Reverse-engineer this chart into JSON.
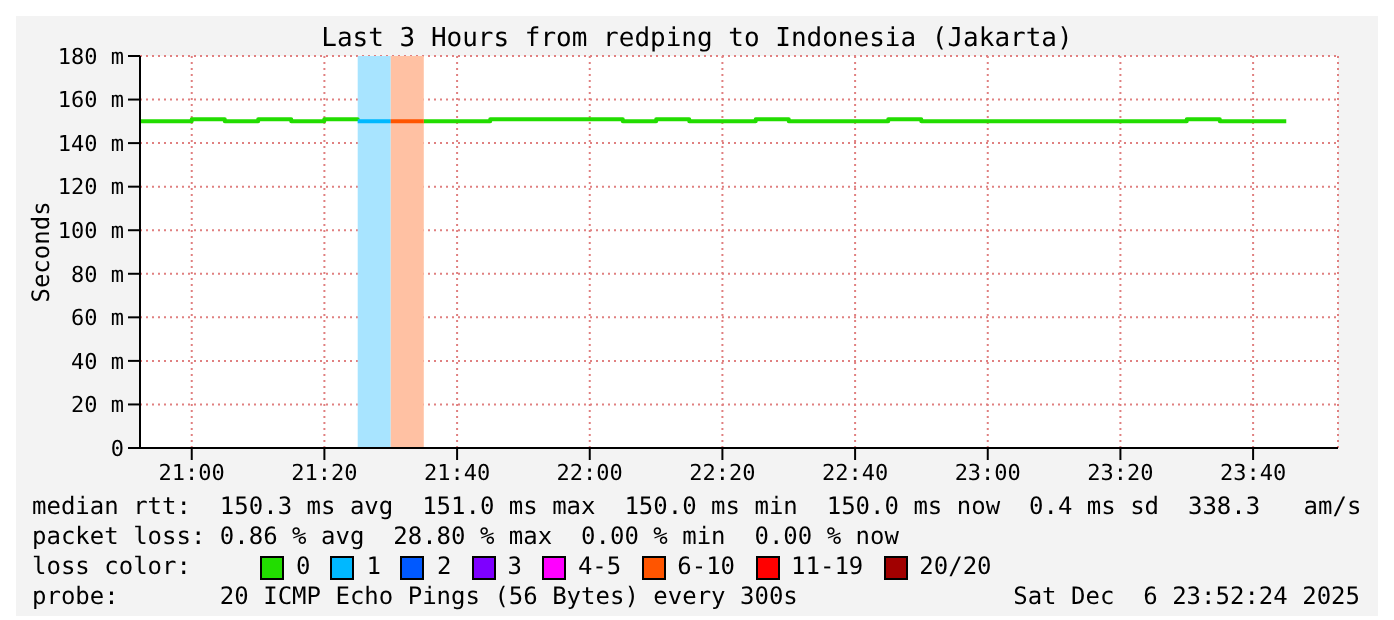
{
  "chart_data": {
    "type": "step",
    "title": "Last 3 Hours from redping to Indonesia (Jakarta)",
    "ylabel": "Seconds",
    "xlim": [
      20.87,
      23.88
    ],
    "xticks": [
      {
        "value": 21,
        "label": "21:00"
      },
      {
        "value": 21.3333,
        "label": "21:20"
      },
      {
        "value": 21.6667,
        "label": "21:40"
      },
      {
        "value": 22,
        "label": "22:00"
      },
      {
        "value": 22.3333,
        "label": "22:20"
      },
      {
        "value": 22.6667,
        "label": "22:40"
      },
      {
        "value": 23,
        "label": "23:00"
      },
      {
        "value": 23.3333,
        "label": "23:20"
      },
      {
        "value": 23.6667,
        "label": "23:40"
      }
    ],
    "ylim": [
      0,
      180
    ],
    "yticks": [
      {
        "value": 0,
        "label": "0"
      },
      {
        "value": 20,
        "label": "20 m"
      },
      {
        "value": 40,
        "label": "40 m"
      },
      {
        "value": 60,
        "label": "60 m"
      },
      {
        "value": 80,
        "label": "80 m"
      },
      {
        "value": 100,
        "label": "100 m"
      },
      {
        "value": 120,
        "label": "120 m"
      },
      {
        "value": 140,
        "label": "140 m"
      },
      {
        "value": 160,
        "label": "160 m"
      },
      {
        "value": 180,
        "label": "180 m"
      }
    ],
    "grid": true,
    "legend": "bottom",
    "legend_title": "loss color:",
    "marker": "none",
    "series": [
      {
        "name": "0",
        "color": "#22dd00",
        "x": [
          20.87,
          21.0,
          21.083,
          21.167,
          21.25,
          21.333,
          21.417,
          21.5,
          21.583,
          21.75,
          22.083,
          22.167,
          22.25,
          22.417,
          22.5,
          22.75,
          22.833,
          23.5,
          23.583,
          23.75
        ],
        "values": [
          150,
          151,
          150,
          151,
          150,
          151,
          150,
          null,
          150,
          151,
          150,
          151,
          150,
          151,
          150,
          151,
          150,
          151,
          150,
          150
        ]
      },
      {
        "name": "1",
        "color": "#00b8ff",
        "x": [
          21.417,
          21.5
        ],
        "values": [
          150,
          150
        ]
      },
      {
        "name": "2",
        "color": "#0059ff"
      },
      {
        "name": "3",
        "color": "#7e00ff"
      },
      {
        "name": "4-5",
        "color": "#ff00ff"
      },
      {
        "name": "6-10",
        "color": "#ff5500",
        "x": [
          21.5,
          21.583
        ],
        "values": [
          150,
          150
        ]
      },
      {
        "name": "11-19",
        "color": "#ff0000"
      },
      {
        "name": "20/20",
        "color": "#a10000"
      }
    ],
    "bands": [
      {
        "axis": "x",
        "from": 21.417,
        "to": 21.5,
        "color": "#a8e4ff"
      },
      {
        "axis": "x",
        "from": 21.5,
        "to": 21.583,
        "color": "#ffc1a3"
      }
    ],
    "annotations": [
      "median rtt:  150.3 ms avg  151.0 ms max  150.0 ms min  150.0 ms now  0.4 ms sd  338.3   am/s",
      "packet loss: 0.86 % avg  28.80 % max  0.00 % min  0.00 % now",
      "probe:       20 ICMP Echo Pings (56 Bytes) every 300s",
      "Sat Dec  6 23:52:24 2025"
    ]
  }
}
